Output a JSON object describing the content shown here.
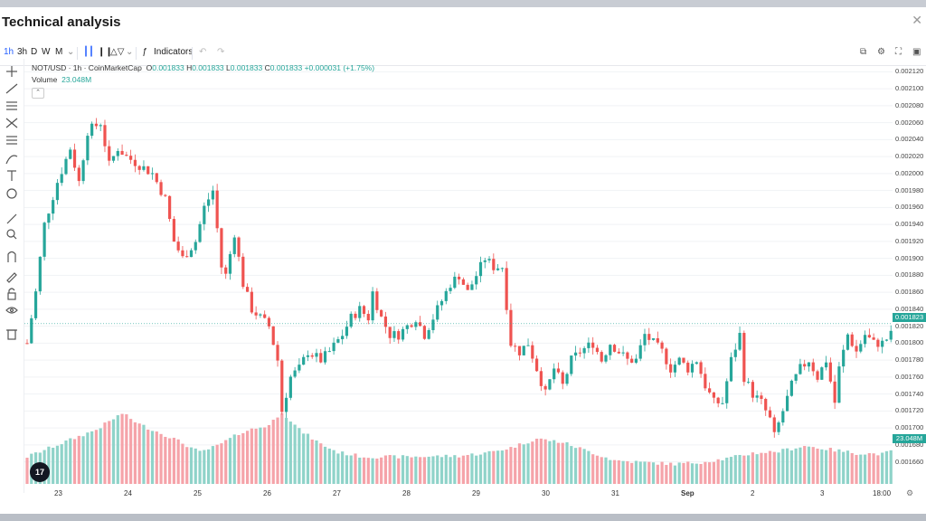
{
  "window": {
    "title": "Technical analysis",
    "close_icon": "close-icon"
  },
  "toolbar": {
    "intervals": [
      "1h",
      "3h",
      "D",
      "W",
      "M"
    ],
    "active_interval": "1h",
    "indicators_label": "Indicators",
    "icons": [
      "chevron-down-icon",
      "candles-icon",
      "bars-icon",
      "area-icon",
      "function-icon",
      "undo-icon",
      "redo-icon",
      "alert-icon",
      "settings-icon",
      "fullscreen-icon",
      "camera-icon"
    ]
  },
  "sidebar": {
    "tools": [
      "crosshair-icon",
      "trendline-icon",
      "parallel-icon",
      "pitchfork-icon",
      "fib-icon",
      "brush-icon",
      "text-icon",
      "emoji-icon",
      "ruler-icon",
      "zoom-icon",
      "magnet-icon",
      "draw-lock-icon",
      "lock-icon",
      "eye-icon",
      "trash-icon"
    ]
  },
  "legend": {
    "symbol": "NOT/USD · 1h · CoinMarketCap",
    "o_label": "O",
    "o": "0.001833",
    "h_label": "H",
    "h": "0.001833",
    "l_label": "L",
    "l": "0.001833",
    "c_label": "C",
    "c": "0.001833",
    "change": "+0.000031 (+1.75%)",
    "volume_label": "Volume",
    "volume": "23.048M"
  },
  "price_tag": "0.001823",
  "volume_tag": "23.048M",
  "logo_text": "17",
  "colors": {
    "up": "#26a69a",
    "down": "#ef5350",
    "vol_up": "#8fd3c9",
    "vol_down": "#f5a3a9"
  },
  "chart_data": {
    "type": "candlestick",
    "title": "NOT/USD · 1h · CoinMarketCap",
    "y_ticks": [
      "0.002120",
      "0.002100",
      "0.002080",
      "0.002060",
      "0.002040",
      "0.002020",
      "0.002000",
      "0.001980",
      "0.001960",
      "0.001940",
      "0.001920",
      "0.001900",
      "0.001880",
      "0.001860",
      "0.001840",
      "0.001820",
      "0.001800",
      "0.001780",
      "0.001760",
      "0.001740",
      "0.001720",
      "0.001700",
      "0.001680",
      "0.001660"
    ],
    "ylim": [
      0.00165,
      0.00213
    ],
    "x_ticks": [
      "23",
      "24",
      "25",
      "26",
      "27",
      "28",
      "29",
      "30",
      "31",
      "Sep",
      "2",
      "3",
      "18:00"
    ],
    "close_path": [
      [
        0,
        0.0018
      ],
      [
        2,
        0.00186
      ],
      [
        4,
        0.00194
      ],
      [
        7,
        0.00199
      ],
      [
        10,
        0.00203
      ],
      [
        12,
        0.00199
      ],
      [
        14,
        0.00205
      ],
      [
        17,
        0.00206
      ],
      [
        19,
        0.00201
      ],
      [
        21,
        0.00203
      ],
      [
        23,
        0.00202
      ],
      [
        26,
        0.00201
      ],
      [
        29,
        0.002
      ],
      [
        32,
        0.00197
      ],
      [
        34,
        0.00192
      ],
      [
        36,
        0.0019
      ],
      [
        39,
        0.00192
      ],
      [
        41,
        0.00196
      ],
      [
        43,
        0.00198
      ],
      [
        45,
        0.00189
      ],
      [
        46,
        0.00188
      ],
      [
        48,
        0.00193
      ],
      [
        50,
        0.00187
      ],
      [
        52,
        0.00184
      ],
      [
        54,
        0.00183
      ],
      [
        56,
        0.00182
      ],
      [
        58,
        0.00178
      ],
      [
        59,
        0.00172
      ],
      [
        61,
        0.00176
      ],
      [
        63,
        0.00177
      ],
      [
        65,
        0.00179
      ],
      [
        68,
        0.00178
      ],
      [
        70,
        0.00179
      ],
      [
        73,
        0.00181
      ],
      [
        75,
        0.00183
      ],
      [
        77,
        0.00184
      ],
      [
        79,
        0.00183
      ],
      [
        80,
        0.00186
      ],
      [
        82,
        0.00183
      ],
      [
        84,
        0.00181
      ],
      [
        86,
        0.00181
      ],
      [
        88,
        0.00182
      ],
      [
        90,
        0.00183
      ],
      [
        92,
        0.00181
      ],
      [
        94,
        0.00183
      ],
      [
        96,
        0.00185
      ],
      [
        98,
        0.00187
      ],
      [
        100,
        0.00188
      ],
      [
        102,
        0.00186
      ],
      [
        104,
        0.00188
      ],
      [
        106,
        0.0019
      ],
      [
        108,
        0.00189
      ],
      [
        110,
        0.00189
      ],
      [
        112,
        0.0018
      ],
      [
        114,
        0.00179
      ],
      [
        116,
        0.0018
      ],
      [
        118,
        0.00177
      ],
      [
        120,
        0.00174
      ],
      [
        122,
        0.00177
      ],
      [
        124,
        0.00175
      ],
      [
        126,
        0.00178
      ],
      [
        128,
        0.00179
      ],
      [
        131,
        0.0018
      ],
      [
        133,
        0.00178
      ],
      [
        135,
        0.0018
      ],
      [
        137,
        0.00179
      ],
      [
        139,
        0.00178
      ],
      [
        141,
        0.00178
      ],
      [
        143,
        0.00181
      ],
      [
        145,
        0.0018
      ],
      [
        147,
        0.00179
      ],
      [
        149,
        0.00177
      ],
      [
        151,
        0.00178
      ],
      [
        153,
        0.00177
      ],
      [
        155,
        0.00178
      ],
      [
        157,
        0.00175
      ],
      [
        159,
        0.00173
      ],
      [
        161,
        0.00173
      ],
      [
        163,
        0.00178
      ],
      [
        165,
        0.00181
      ],
      [
        166,
        0.00176
      ],
      [
        168,
        0.00174
      ],
      [
        170,
        0.00173
      ],
      [
        172,
        0.00171
      ],
      [
        173,
        0.00169
      ],
      [
        175,
        0.00172
      ],
      [
        177,
        0.00175
      ],
      [
        179,
        0.00177
      ],
      [
        181,
        0.00178
      ],
      [
        183,
        0.00176
      ],
      [
        185,
        0.00178
      ],
      [
        187,
        0.00173
      ],
      [
        188,
        0.00177
      ],
      [
        190,
        0.00181
      ],
      [
        192,
        0.00179
      ],
      [
        194,
        0.00181
      ],
      [
        196,
        0.0018
      ],
      [
        198,
        0.0018
      ],
      [
        200,
        0.00181
      ]
    ],
    "volume_path": [
      [
        0,
        0.3
      ],
      [
        8,
        0.45
      ],
      [
        16,
        0.6
      ],
      [
        22,
        0.78
      ],
      [
        26,
        0.66
      ],
      [
        34,
        0.5
      ],
      [
        40,
        0.35
      ],
      [
        44,
        0.42
      ],
      [
        50,
        0.58
      ],
      [
        56,
        0.65
      ],
      [
        59,
        0.8
      ],
      [
        63,
        0.6
      ],
      [
        68,
        0.44
      ],
      [
        72,
        0.35
      ],
      [
        78,
        0.3
      ],
      [
        88,
        0.3
      ],
      [
        100,
        0.31
      ],
      [
        106,
        0.34
      ],
      [
        112,
        0.4
      ],
      [
        118,
        0.5
      ],
      [
        124,
        0.46
      ],
      [
        130,
        0.36
      ],
      [
        136,
        0.26
      ],
      [
        142,
        0.24
      ],
      [
        150,
        0.22
      ],
      [
        156,
        0.24
      ],
      [
        162,
        0.28
      ],
      [
        168,
        0.34
      ],
      [
        174,
        0.36
      ],
      [
        180,
        0.42
      ],
      [
        186,
        0.38
      ],
      [
        192,
        0.34
      ],
      [
        198,
        0.33
      ],
      [
        200,
        0.36
      ]
    ]
  }
}
